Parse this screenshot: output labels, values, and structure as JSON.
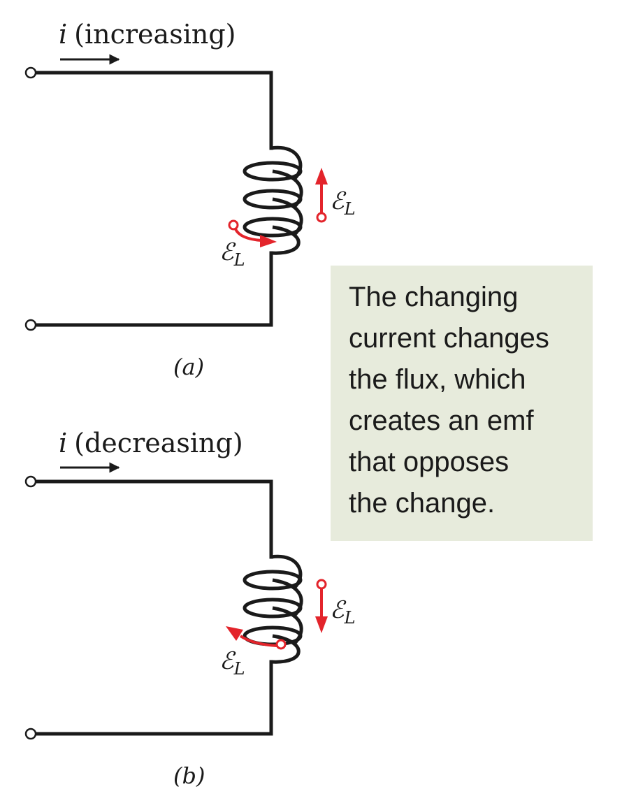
{
  "panel_a": {
    "current_symbol": "i",
    "current_label": "(increasing)",
    "emf_symbol": "ℰ",
    "emf_subscript": "L",
    "panel_label": "(a)"
  },
  "panel_b": {
    "current_symbol": "i",
    "current_label": "(decreasing)",
    "emf_symbol": "ℰ",
    "emf_subscript": "L",
    "panel_label": "(b)"
  },
  "caption": {
    "lines": [
      "The changing",
      "current changes",
      "the flux, which",
      "creates an emf",
      "that opposes",
      "the change."
    ]
  },
  "colors": {
    "emf_arrow": "#e3242b",
    "caption_bg": "#e7ebdc",
    "wire": "#1a1a1a"
  }
}
